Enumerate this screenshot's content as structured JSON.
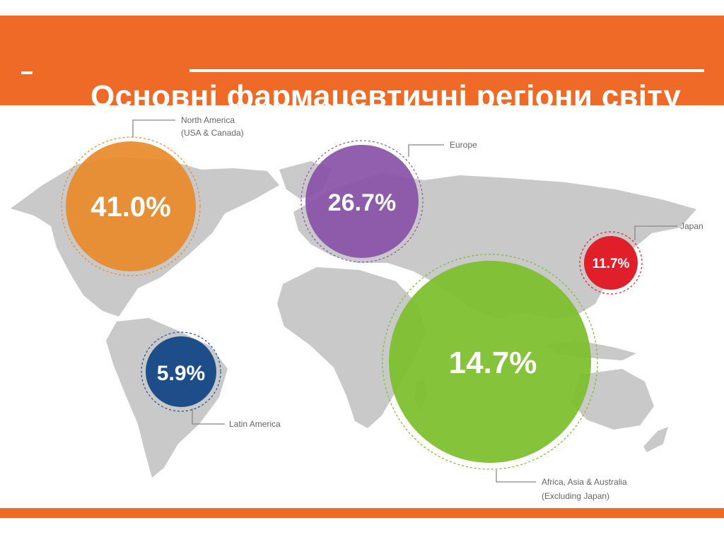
{
  "header": {
    "title": "Основні фармацевтичні регіони світу",
    "color": "#f06a27"
  },
  "regions": [
    {
      "name_line1": "North America",
      "name_line2": "(USA & Canada)",
      "percent": "41.0%",
      "color": "#e98a2a"
    },
    {
      "name_line1": "Europe",
      "name_line2": "",
      "percent": "26.7%",
      "color": "#8a52a8"
    },
    {
      "name_line1": "Japan",
      "name_line2": "",
      "percent": "11.7%",
      "color": "#e01f2b"
    },
    {
      "name_line1": "Latin America",
      "name_line2": "",
      "percent": "5.9%",
      "color": "#1d4e8a"
    },
    {
      "name_line1": "Africa, Asia & Australia",
      "name_line2": "(Excluding Japan)",
      "percent": "14.7%",
      "color": "#7cbf2e"
    }
  ]
}
